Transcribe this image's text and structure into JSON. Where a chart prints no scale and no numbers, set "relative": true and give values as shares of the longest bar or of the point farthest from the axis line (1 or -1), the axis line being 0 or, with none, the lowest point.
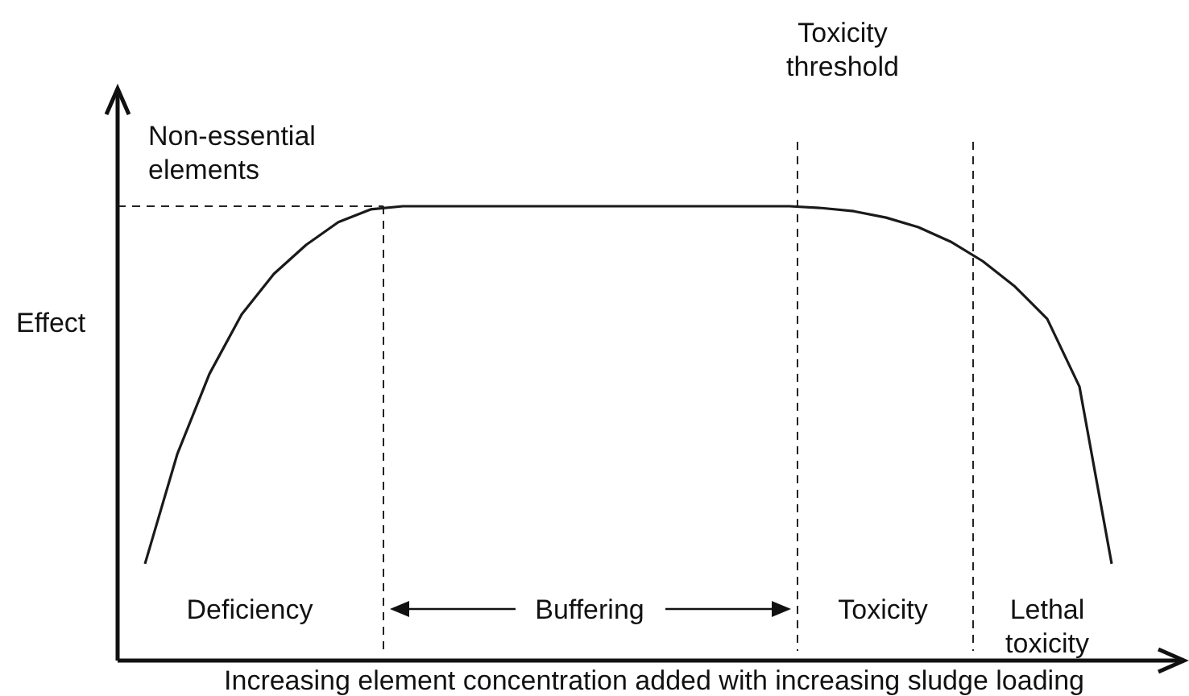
{
  "chart_data": {
    "type": "line",
    "relative": true,
    "xlabel": "Increasing element concentration added with increasing sludge loading",
    "ylabel": "Effect",
    "categories": [
      null,
      null,
      null,
      null,
      null,
      null,
      null,
      null,
      null,
      null,
      null,
      null,
      null,
      null,
      null,
      null,
      null,
      null,
      null,
      null,
      null,
      null,
      null,
      null,
      null,
      null,
      null,
      null,
      null,
      null,
      null
    ],
    "series": [
      {
        "color": "#1a1a1a",
        "values": [
          0.213,
          0.454,
          0.631,
          0.762,
          0.851,
          0.915,
          0.965,
          0.993,
          1,
          1,
          1,
          1,
          1,
          1,
          1,
          1,
          1,
          1,
          1,
          1,
          1,
          0.996,
          0.989,
          0.975,
          0.954,
          0.922,
          0.879,
          0.823,
          0.752,
          0.603,
          0.213
        ]
      }
    ],
    "ref_lines": [
      {
        "axis": "y",
        "value": 1,
        "line_style": "dashed"
      }
    ],
    "annotations": [
      "Non-essential elements",
      "Deficiency",
      "Buffering",
      "Toxicity",
      "Lethal\ntoxicity",
      "Toxicity\nthreshold"
    ],
    "line_style": "solid"
  }
}
